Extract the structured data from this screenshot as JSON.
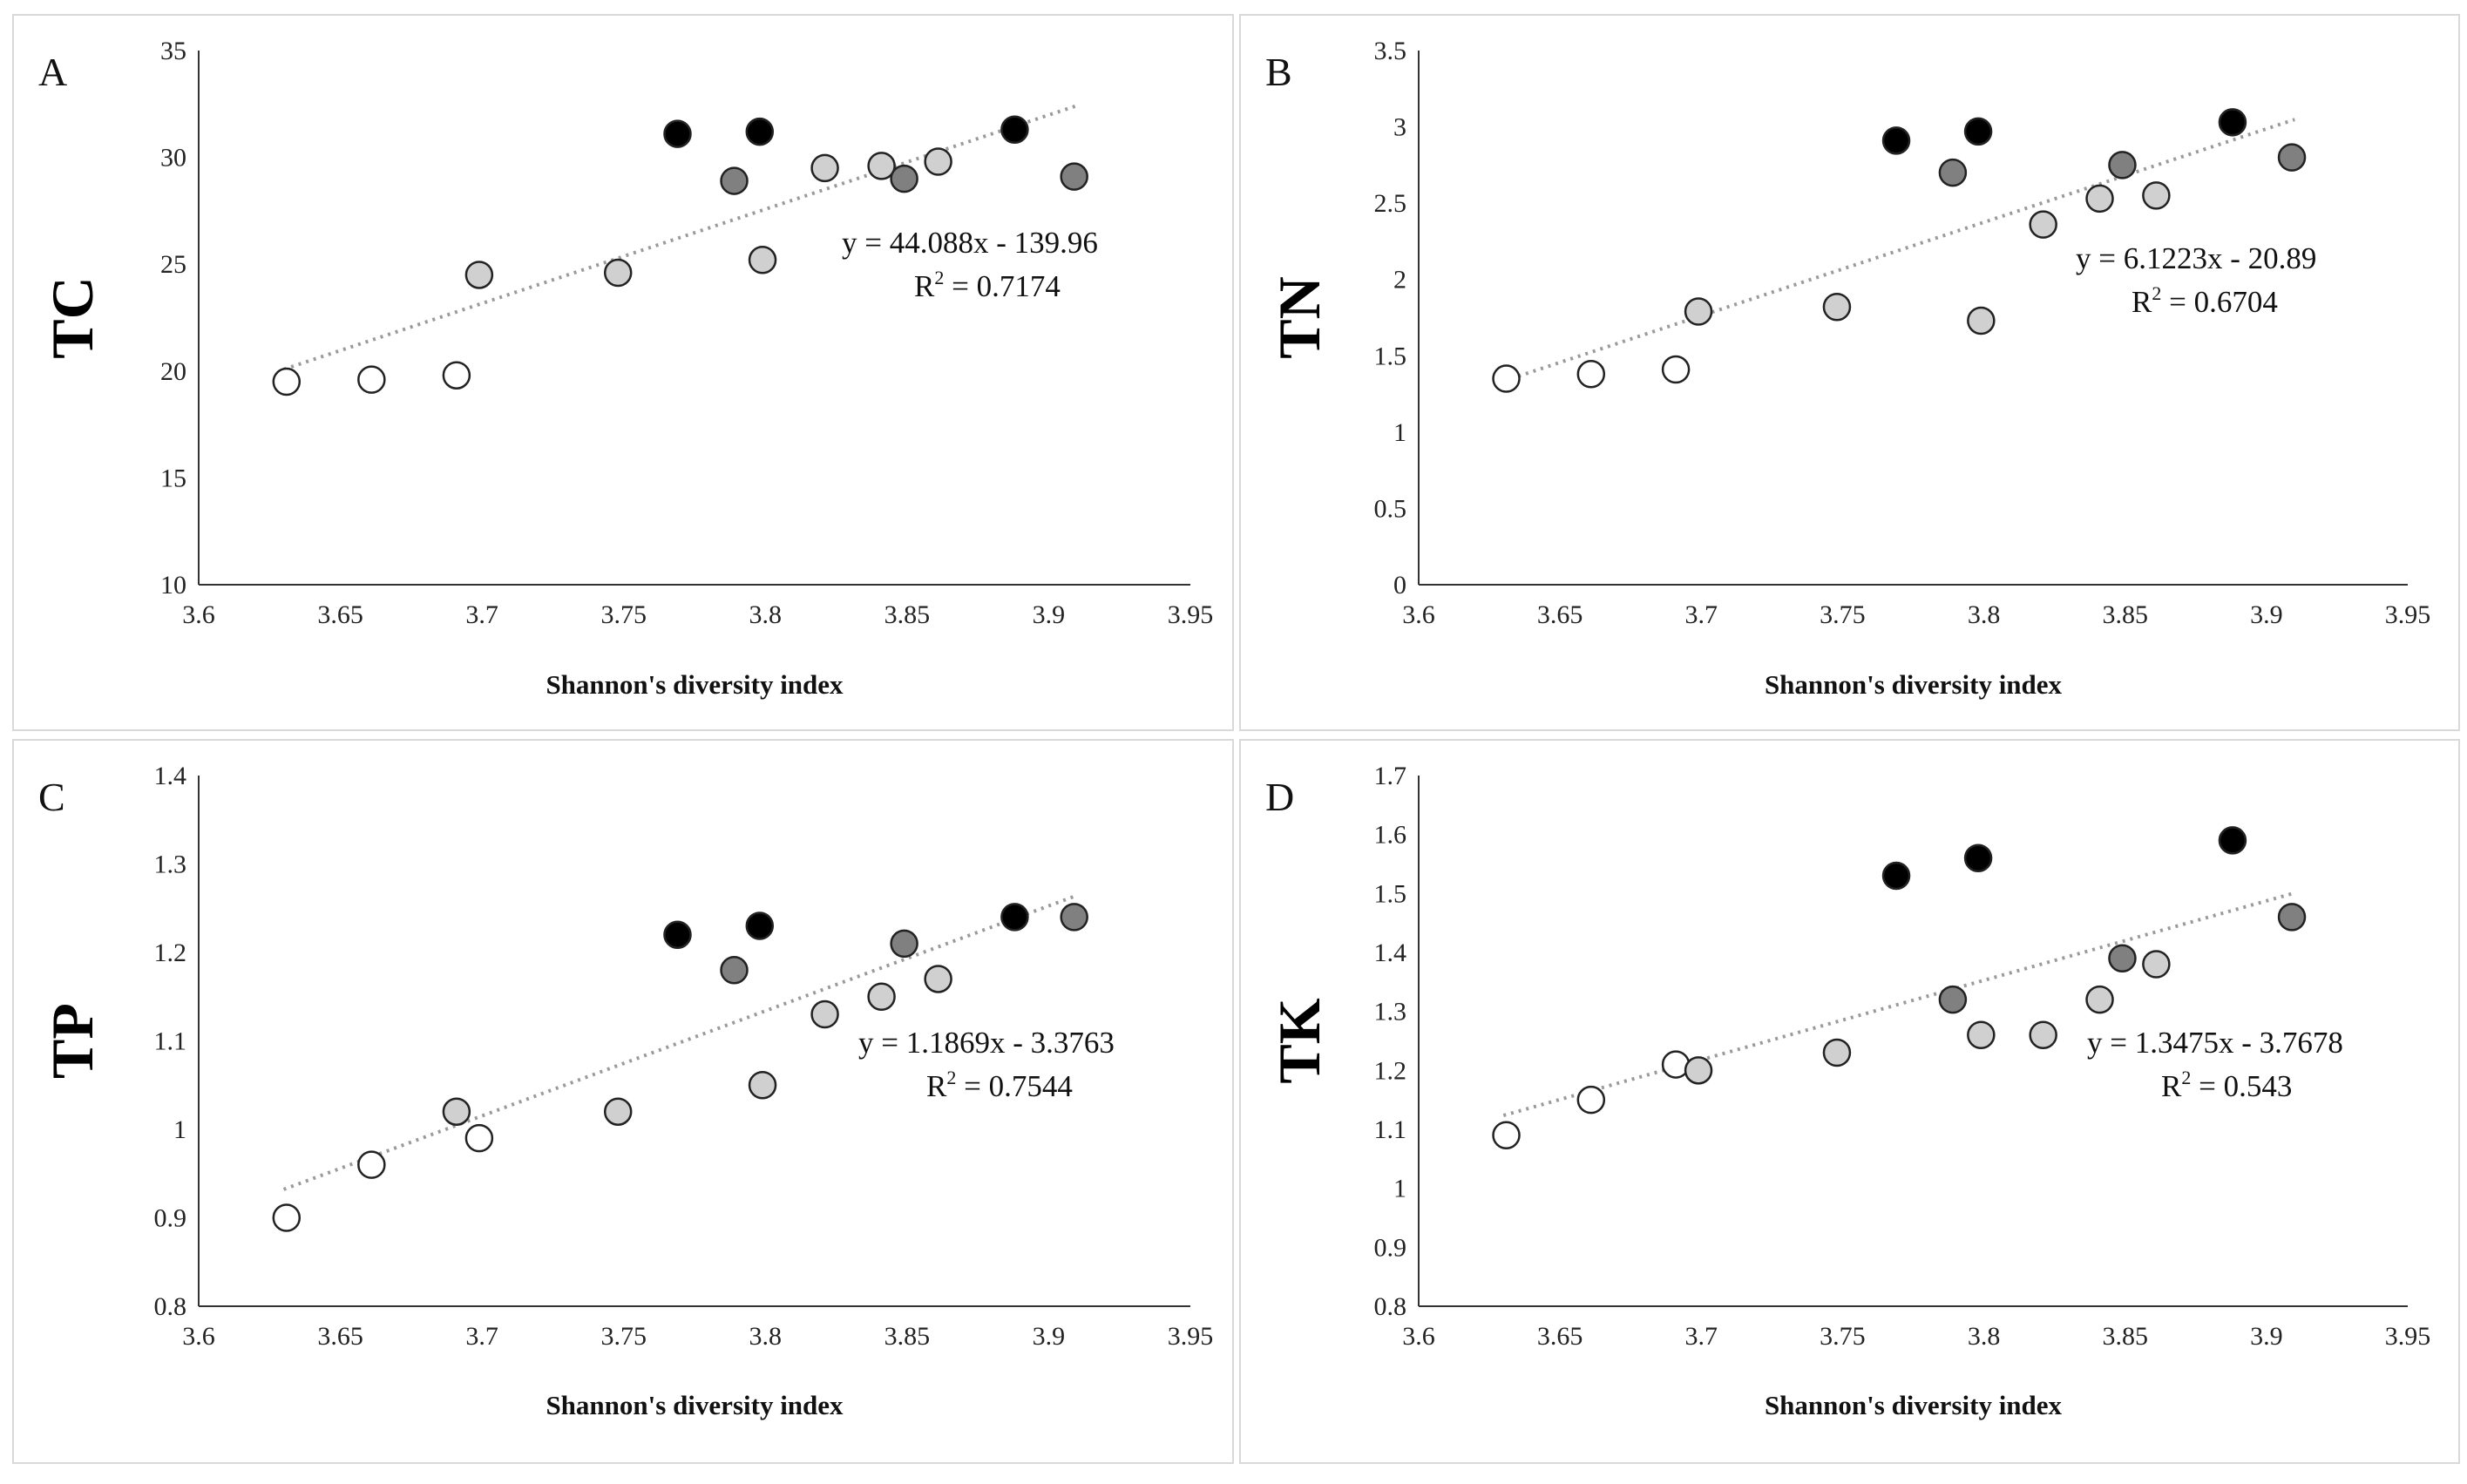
{
  "chart_data": [
    {
      "panel": "A",
      "type": "scatter",
      "panel_label": "A",
      "title": "",
      "xlabel": "Shannon's diversity index",
      "ylabel": "TC",
      "xlim": [
        3.6,
        3.95
      ],
      "ylim": [
        10,
        35
      ],
      "x_ticks": [
        "3.6",
        "3.65",
        "3.7",
        "3.75",
        "3.8",
        "3.85",
        "3.9",
        "3.95"
      ],
      "y_ticks": [
        "10",
        "15",
        "20",
        "25",
        "30",
        "35"
      ],
      "grid": false,
      "legend": "none",
      "series": [
        {
          "name": "white",
          "color": "#ffffff",
          "points": [
            [
              3.631,
              19.5
            ],
            [
              3.661,
              19.6
            ],
            [
              3.691,
              19.8
            ]
          ]
        },
        {
          "name": "light gray",
          "color": "#d0d0d0",
          "points": [
            [
              3.699,
              24.5
            ],
            [
              3.748,
              24.6
            ],
            [
              3.799,
              25.2
            ],
            [
              3.821,
              29.5
            ],
            [
              3.841,
              29.6
            ],
            [
              3.861,
              29.8
            ]
          ]
        },
        {
          "name": "dark gray",
          "color": "#808080",
          "points": [
            [
              3.789,
              28.9
            ],
            [
              3.849,
              29.0
            ],
            [
              3.909,
              29.1
            ]
          ]
        },
        {
          "name": "black",
          "color": "#000000",
          "points": [
            [
              3.769,
              31.1
            ],
            [
              3.798,
              31.2
            ],
            [
              3.888,
              31.3
            ]
          ]
        }
      ],
      "trendline": {
        "type": "linear",
        "slope": 44.088,
        "intercept": -139.96,
        "x_range": [
          3.63,
          3.91
        ]
      },
      "annotations": {
        "equation": "y = 44.088x - 139.96",
        "r_label": "R",
        "r_sup": "2",
        "r_value": " = 0.7174"
      }
    },
    {
      "panel": "B",
      "type": "scatter",
      "panel_label": "B",
      "title": "",
      "xlabel": "Shannon's diversity index",
      "ylabel": "TN",
      "xlim": [
        3.6,
        3.95
      ],
      "ylim": [
        0,
        3.5
      ],
      "x_ticks": [
        "3.6",
        "3.65",
        "3.7",
        "3.75",
        "3.8",
        "3.85",
        "3.9",
        "3.95"
      ],
      "y_ticks": [
        "0",
        "0.5",
        "1",
        "1.5",
        "2",
        "2.5",
        "3",
        "3.5"
      ],
      "grid": false,
      "legend": "none",
      "series": [
        {
          "name": "white",
          "color": "#ffffff",
          "points": [
            [
              3.631,
              1.35
            ],
            [
              3.661,
              1.38
            ],
            [
              3.691,
              1.41
            ]
          ]
        },
        {
          "name": "light gray",
          "color": "#d0d0d0",
          "points": [
            [
              3.699,
              1.79
            ],
            [
              3.748,
              1.82
            ],
            [
              3.799,
              1.73
            ],
            [
              3.821,
              2.36
            ],
            [
              3.841,
              2.53
            ],
            [
              3.861,
              2.55
            ]
          ]
        },
        {
          "name": "dark gray",
          "color": "#808080",
          "points": [
            [
              3.789,
              2.7
            ],
            [
              3.849,
              2.75
            ],
            [
              3.909,
              2.8
            ]
          ]
        },
        {
          "name": "black",
          "color": "#000000",
          "points": [
            [
              3.769,
              2.91
            ],
            [
              3.798,
              2.97
            ],
            [
              3.888,
              3.03
            ]
          ]
        }
      ],
      "trendline": {
        "type": "linear",
        "slope": 6.1223,
        "intercept": -20.89,
        "x_range": [
          3.63,
          3.91
        ]
      },
      "annotations": {
        "equation": "y = 6.1223x - 20.89",
        "r_label": "R",
        "r_sup": "2",
        "r_value": " = 0.6704"
      }
    },
    {
      "panel": "C",
      "type": "scatter",
      "panel_label": "C",
      "title": "",
      "xlabel": "Shannon's diversity index",
      "ylabel": "TP",
      "xlim": [
        3.6,
        3.95
      ],
      "ylim": [
        0.8,
        1.4
      ],
      "x_ticks": [
        "3.6",
        "3.65",
        "3.7",
        "3.75",
        "3.8",
        "3.85",
        "3.9",
        "3.95"
      ],
      "y_ticks": [
        "0.8",
        "0.9",
        "1",
        "1.1",
        "1.2",
        "1.3",
        "1.4"
      ],
      "grid": false,
      "legend": "none",
      "series": [
        {
          "name": "white",
          "color": "#ffffff",
          "points": [
            [
              3.631,
              0.9
            ],
            [
              3.661,
              0.96
            ],
            [
              3.699,
              0.99
            ]
          ]
        },
        {
          "name": "light gray",
          "color": "#d0d0d0",
          "points": [
            [
              3.691,
              1.02
            ],
            [
              3.748,
              1.02
            ],
            [
              3.799,
              1.05
            ],
            [
              3.821,
              1.13
            ],
            [
              3.841,
              1.15
            ],
            [
              3.861,
              1.17
            ]
          ]
        },
        {
          "name": "dark gray",
          "color": "#808080",
          "points": [
            [
              3.789,
              1.18
            ],
            [
              3.849,
              1.21
            ],
            [
              3.909,
              1.24
            ]
          ]
        },
        {
          "name": "black",
          "color": "#000000",
          "points": [
            [
              3.769,
              1.22
            ],
            [
              3.798,
              1.23
            ],
            [
              3.888,
              1.24
            ]
          ]
        }
      ],
      "trendline": {
        "type": "linear",
        "slope": 1.1869,
        "intercept": -3.3763,
        "x_range": [
          3.63,
          3.91
        ]
      },
      "annotations": {
        "equation": "y = 1.1869x - 3.3763",
        "r_label": "R",
        "r_sup": "2",
        "r_value": " = 0.7544"
      }
    },
    {
      "panel": "D",
      "type": "scatter",
      "panel_label": "D",
      "title": "",
      "xlabel": "Shannon's diversity index",
      "ylabel": "TK",
      "xlim": [
        3.6,
        3.95
      ],
      "ylim": [
        0.8,
        1.7
      ],
      "x_ticks": [
        "3.6",
        "3.65",
        "3.7",
        "3.75",
        "3.8",
        "3.85",
        "3.9",
        "3.95"
      ],
      "y_ticks": [
        "0.8",
        "0.9",
        "1",
        "1.1",
        "1.2",
        "1.3",
        "1.4",
        "1.5",
        "1.6",
        "1.7"
      ],
      "grid": false,
      "legend": "none",
      "series": [
        {
          "name": "white",
          "color": "#ffffff",
          "points": [
            [
              3.631,
              1.09
            ],
            [
              3.661,
              1.15
            ],
            [
              3.691,
              1.21
            ]
          ]
        },
        {
          "name": "light gray",
          "color": "#d0d0d0",
          "points": [
            [
              3.699,
              1.2
            ],
            [
              3.748,
              1.23
            ],
            [
              3.799,
              1.26
            ],
            [
              3.821,
              1.26
            ],
            [
              3.841,
              1.32
            ],
            [
              3.861,
              1.38
            ]
          ]
        },
        {
          "name": "dark gray",
          "color": "#808080",
          "points": [
            [
              3.789,
              1.32
            ],
            [
              3.849,
              1.39
            ],
            [
              3.909,
              1.46
            ]
          ]
        },
        {
          "name": "black",
          "color": "#000000",
          "points": [
            [
              3.769,
              1.53
            ],
            [
              3.798,
              1.56
            ],
            [
              3.888,
              1.59
            ]
          ]
        }
      ],
      "trendline": {
        "type": "linear",
        "slope": 1.3475,
        "intercept": -3.7678,
        "x_range": [
          3.63,
          3.91
        ]
      },
      "annotations": {
        "equation": "y = 1.3475x - 3.7678",
        "r_label": "R",
        "r_sup": "2",
        "r_value": " = 0.543"
      }
    }
  ]
}
